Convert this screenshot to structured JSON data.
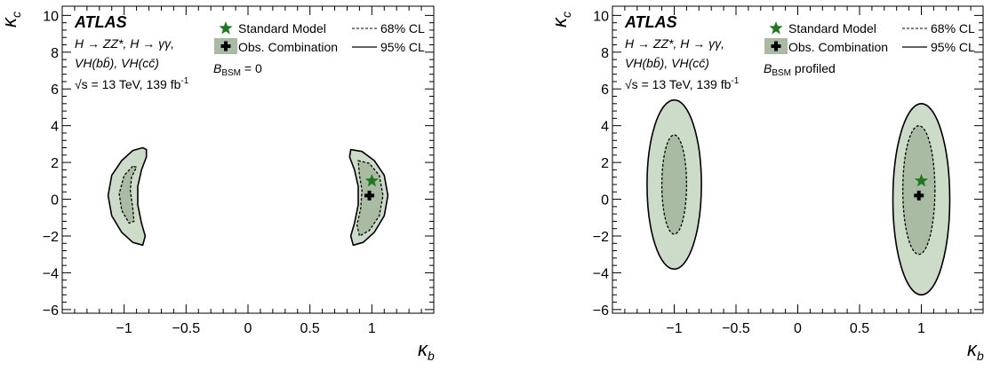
{
  "chart_data": [
    {
      "type": "contour",
      "xlabel": "κ",
      "xlabel_sub": "b",
      "ylabel": "κ",
      "ylabel_sub": "c",
      "xlim": [
        -1.5,
        1.5
      ],
      "ylim": [
        -6.2,
        10.5
      ],
      "x_ticks": [
        -1,
        -0.5,
        0,
        0.5,
        1
      ],
      "x_tick_labels": [
        "−1",
        "−0.5",
        "0",
        "0.5",
        "1"
      ],
      "y_ticks": [
        -6,
        -4,
        -2,
        0,
        2,
        4,
        6,
        8,
        10
      ],
      "y_tick_labels": [
        "−6",
        "−4",
        "−2",
        "0",
        "2",
        "4",
        "6",
        "8",
        "10"
      ],
      "experiment": "ATLAS",
      "process_lines": [
        "H → ZZ*, H → γγ,",
        "VH(bb̄), VH(cc̄)"
      ],
      "energy": "√s = 13 TeV, 139 fb",
      "energy_sup": "-1",
      "scenario": "B",
      "scenario_sub": "BSM",
      "scenario_tail": " = 0",
      "legend": {
        "sm": "Standard Model",
        "obs": "Obs. Combination",
        "cl68": "68% CL",
        "cl95": "95% CL"
      },
      "standard_model": {
        "x": 1.0,
        "y": 1.0
      },
      "best_fit": {
        "x": 0.98,
        "y": 0.2
      },
      "contours_95": [
        [
          [
            -0.85,
            2.8
          ],
          [
            -0.93,
            2.65
          ],
          [
            -1.02,
            2.1
          ],
          [
            -1.1,
            1.3
          ],
          [
            -1.13,
            0.2
          ],
          [
            -1.1,
            -0.9
          ],
          [
            -1.02,
            -1.8
          ],
          [
            -0.93,
            -2.35
          ],
          [
            -0.85,
            -2.5
          ],
          [
            -0.83,
            -2.0
          ],
          [
            -0.86,
            -1.3
          ],
          [
            -0.89,
            -0.3
          ],
          [
            -0.89,
            0.7
          ],
          [
            -0.86,
            1.6
          ],
          [
            -0.82,
            2.3
          ],
          [
            -0.82,
            2.7
          ]
        ],
        [
          [
            0.83,
            2.7
          ],
          [
            0.92,
            2.6
          ],
          [
            1.02,
            2.1
          ],
          [
            1.1,
            1.3
          ],
          [
            1.13,
            0.2
          ],
          [
            1.1,
            -0.9
          ],
          [
            1.02,
            -1.8
          ],
          [
            0.93,
            -2.35
          ],
          [
            0.85,
            -2.5
          ],
          [
            0.83,
            -2.0
          ],
          [
            0.86,
            -1.3
          ],
          [
            0.89,
            -0.3
          ],
          [
            0.89,
            0.7
          ],
          [
            0.86,
            1.6
          ],
          [
            0.82,
            2.3
          ]
        ]
      ],
      "contours_68": [
        [
          [
            -0.93,
            1.8
          ],
          [
            -1.0,
            1.3
          ],
          [
            -1.04,
            0.3
          ],
          [
            -1.02,
            -0.6
          ],
          [
            -0.96,
            -1.3
          ],
          [
            -0.92,
            -1.2
          ],
          [
            -0.93,
            -0.5
          ],
          [
            -0.95,
            0.5
          ],
          [
            -0.94,
            1.2
          ],
          [
            -0.9,
            1.75
          ]
        ],
        [
          [
            0.89,
            2.1
          ],
          [
            0.98,
            1.95
          ],
          [
            1.06,
            1.3
          ],
          [
            1.09,
            0.2
          ],
          [
            1.06,
            -0.9
          ],
          [
            0.98,
            -1.7
          ],
          [
            0.9,
            -2.0
          ],
          [
            0.88,
            -1.4
          ],
          [
            0.91,
            -0.5
          ],
          [
            0.92,
            0.5
          ],
          [
            0.9,
            1.3
          ]
        ]
      ]
    },
    {
      "type": "contour",
      "xlabel": "κ",
      "xlabel_sub": "b",
      "ylabel": "κ",
      "ylabel_sub": "c",
      "xlim": [
        -1.5,
        1.5
      ],
      "ylim": [
        -6.2,
        10.5
      ],
      "x_ticks": [
        -1,
        -0.5,
        0,
        0.5,
        1
      ],
      "x_tick_labels": [
        "−1",
        "−0.5",
        "0",
        "0.5",
        "1"
      ],
      "y_ticks": [
        -6,
        -4,
        -2,
        0,
        2,
        4,
        6,
        8,
        10
      ],
      "y_tick_labels": [
        "−6",
        "−4",
        "−2",
        "0",
        "2",
        "4",
        "6",
        "8",
        "10"
      ],
      "experiment": "ATLAS",
      "process_lines": [
        "H → ZZ*, H → γγ,",
        "VH(bb̄), VH(cc̄)"
      ],
      "energy": "√s = 13 TeV, 139 fb",
      "energy_sup": "-1",
      "scenario": "B",
      "scenario_sub": "BSM",
      "scenario_tail": " profiled",
      "legend": {
        "sm": "Standard Model",
        "obs": "Obs. Combination",
        "cl68": "68% CL",
        "cl95": "95% CL"
      },
      "standard_model": {
        "x": 1.0,
        "y": 1.0
      },
      "best_fit": {
        "x": 0.98,
        "y": 0.2
      },
      "ellipses_95": [
        {
          "cx": -1.0,
          "cy": 0.8,
          "rx": 0.22,
          "ry": 4.6
        },
        {
          "cx": 1.0,
          "cy": 0.0,
          "rx": 0.23,
          "ry": 5.2
        }
      ],
      "ellipses_68": [
        {
          "cx": -1.0,
          "cy": 0.8,
          "rx": 0.1,
          "ry": 2.7
        },
        {
          "cx": 0.98,
          "cy": 0.5,
          "rx": 0.13,
          "ry": 3.5
        }
      ]
    }
  ]
}
